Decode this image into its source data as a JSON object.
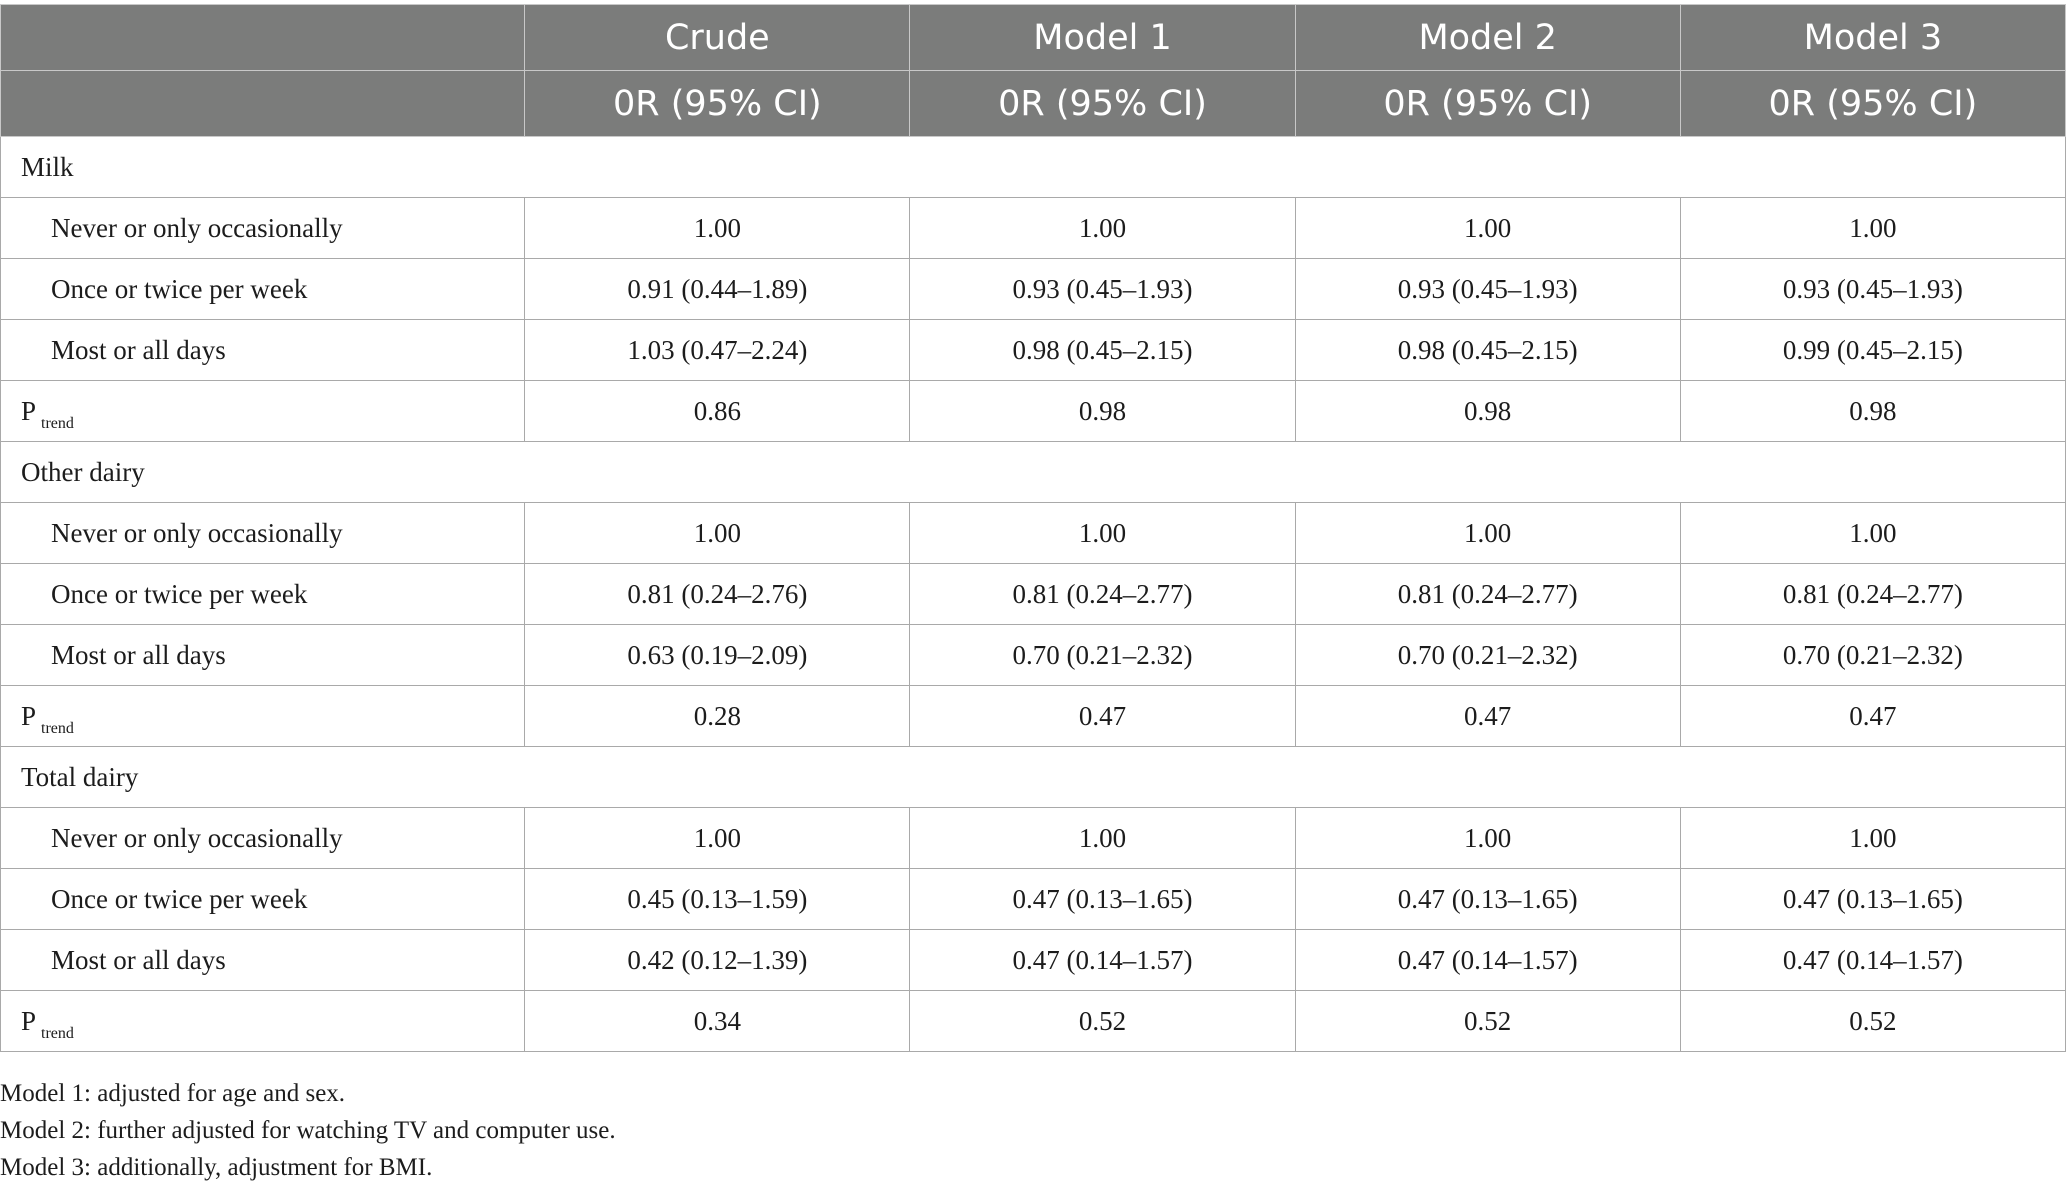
{
  "table": {
    "header_row1": [
      "",
      "Crude",
      "Model 1",
      "Model 2",
      "Model 3"
    ],
    "header_row2": [
      "",
      "0R (95% CI)",
      "0R (95% CI)",
      "0R (95% CI)",
      "0R (95% CI)"
    ],
    "groups": [
      {
        "name": "Milk",
        "rows": [
          {
            "label": "Never or only occasionally",
            "values": [
              "1.00",
              "1.00",
              "1.00",
              "1.00"
            ]
          },
          {
            "label": "Once or twice per week",
            "values": [
              "0.91 (0.44–1.89)",
              "0.93 (0.45–1.93)",
              "0.93 (0.45–1.93)",
              "0.93 (0.45–1.93)"
            ]
          },
          {
            "label": "Most or all days",
            "values": [
              "1.03 (0.47–2.24)",
              "0.98 (0.45–2.15)",
              "0.98 (0.45–2.15)",
              "0.99 (0.45–2.15)"
            ]
          }
        ],
        "p_trend": {
          "label_main": "P",
          "label_sub": "trend",
          "values": [
            "0.86",
            "0.98",
            "0.98",
            "0.98"
          ]
        }
      },
      {
        "name": "Other dairy",
        "rows": [
          {
            "label": "Never or only occasionally",
            "values": [
              "1.00",
              "1.00",
              "1.00",
              "1.00"
            ]
          },
          {
            "label": "Once or twice per week",
            "values": [
              "0.81 (0.24–2.76)",
              "0.81 (0.24–2.77)",
              "0.81 (0.24–2.77)",
              "0.81 (0.24–2.77)"
            ]
          },
          {
            "label": "Most or all days",
            "values": [
              "0.63 (0.19–2.09)",
              "0.70 (0.21–2.32)",
              "0.70 (0.21–2.32)",
              "0.70 (0.21–2.32)"
            ]
          }
        ],
        "p_trend": {
          "label_main": "P",
          "label_sub": "trend",
          "values": [
            "0.28",
            "0.47",
            "0.47",
            "0.47"
          ]
        }
      },
      {
        "name": "Total dairy",
        "rows": [
          {
            "label": "Never or only occasionally",
            "values": [
              "1.00",
              "1.00",
              "1.00",
              "1.00"
            ]
          },
          {
            "label": "Once or twice per week",
            "values": [
              "0.45 (0.13–1.59)",
              "0.47 (0.13–1.65)",
              "0.47 (0.13–1.65)",
              "0.47 (0.13–1.65)"
            ]
          },
          {
            "label": "Most or all days",
            "values": [
              "0.42 (0.12–1.39)",
              "0.47 (0.14–1.57)",
              "0.47 (0.14–1.57)",
              "0.47 (0.14–1.57)"
            ]
          }
        ],
        "p_trend": {
          "label_main": "P",
          "label_sub": "trend",
          "values": [
            "0.34",
            "0.52",
            "0.52",
            "0.52"
          ]
        }
      }
    ]
  },
  "notes": [
    "Model 1: adjusted for age and sex.",
    "Model 2: further adjusted for watching TV and computer use.",
    "Model 3: additionally, adjustment for BMI."
  ],
  "colors": {
    "header_bg": "#7b7c7b",
    "header_text": "#ffffff",
    "border": "#a9a9a9"
  }
}
